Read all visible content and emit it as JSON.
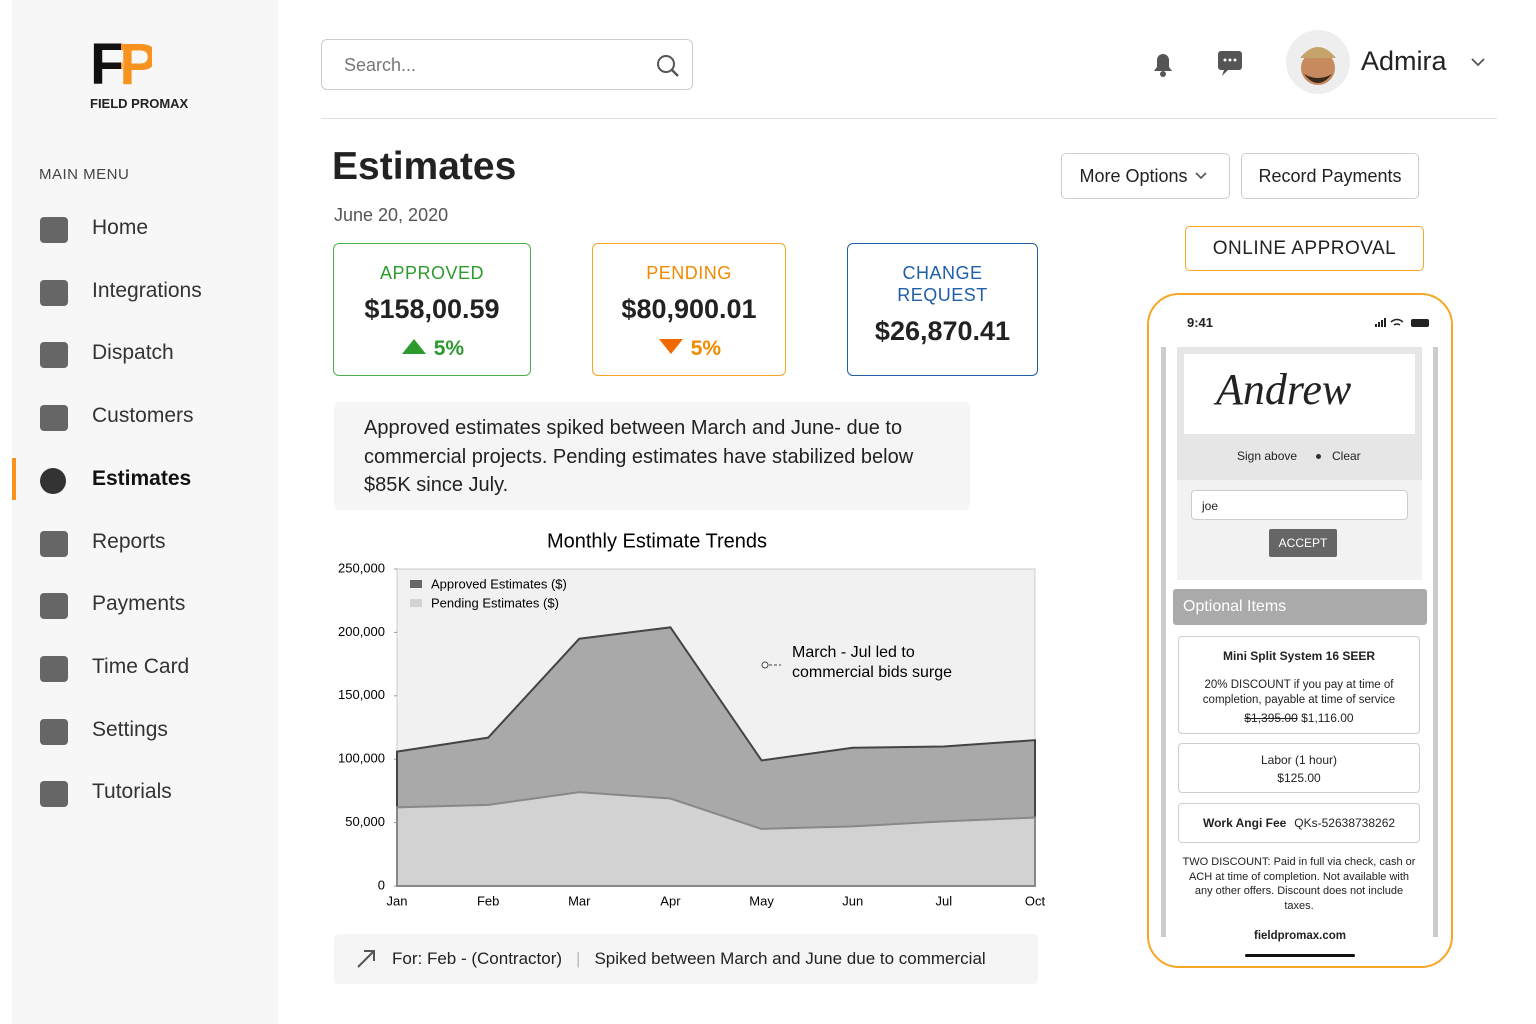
{
  "logo": {
    "mark": "FP",
    "name": "FIELD PROMAX"
  },
  "sidebar": {
    "heading": "MAIN MENU",
    "items": [
      "Home",
      "Integrations",
      "Dispatch",
      "Customers",
      "Estimates",
      "Reports",
      "Payments",
      "Time Card",
      "Settings",
      "Tutorials"
    ],
    "active": "Estimates"
  },
  "header": {
    "search_placeholder": "Search...",
    "user": "Admira"
  },
  "page": {
    "title": "Estimates",
    "date": "June 20, 2020",
    "buttons": [
      "More Options",
      "Record Payments"
    ]
  },
  "cards": [
    {
      "label": "APPROVED",
      "amount": "$158,00.59",
      "change": "5%",
      "direction": "up"
    },
    {
      "label": "PENDING",
      "amount": "$80,900.01",
      "change": "5%",
      "direction": "down"
    },
    {
      "label": "CHANGE\nREQUEST",
      "amount": "$26,870.41"
    }
  ],
  "insight": "Approved estimates spiked between March and June- due to commercial projects. Pending estimates have stabilized below $85K since July.",
  "chart_data": {
    "type": "area",
    "title": "Monthly Estimate Trends",
    "categories": [
      "Jan",
      "Feb",
      "Mar",
      "Apr",
      "May",
      "Jun",
      "Jul",
      "Oct"
    ],
    "series": [
      {
        "name": "Approved Estimates ($)",
        "color": "#a9a9a9",
        "values": [
          106000,
          117000,
          195000,
          204000,
          99000,
          109000,
          110000,
          115000
        ]
      },
      {
        "name": "Pending Estimates ($)",
        "color": "#d2d2d2",
        "values": [
          62000,
          64000,
          74000,
          69000,
          45000,
          47000,
          51000,
          54000
        ]
      }
    ],
    "ylim": [
      0,
      250000
    ],
    "yticks": [
      0,
      {
        "value": 50000,
        "label": "50,000"
      },
      {
        "value": 100000,
        "label": "100,000"
      },
      {
        "value": 150000,
        "label": "150,000"
      },
      {
        "value": 200000,
        "label": "200,000"
      },
      {
        "value": 250000,
        "label": "250,000"
      }
    ],
    "grid": false,
    "legend": "top-left",
    "annotation": "March - Jul led to\ncommercial bids surge"
  },
  "footer": {
    "for": "For: Feb - (Contractor)",
    "note": "Spiked between March and June due to commercial"
  },
  "approval": {
    "button": "ONLINE APPROVAL",
    "phone": {
      "time": "9:41",
      "signature": "Andrew",
      "sign_above": "Sign above",
      "clear": "Clear",
      "input": "joe",
      "accept": "ACCEPT",
      "optional_heading": "Optional Items",
      "item1": {
        "title": "Mini Split System 16 SEER",
        "desc": "20% DISCOUNT if you pay at time of completion, payable at time of service",
        "old_price": "$1,395.00",
        "price": "$1,116.00"
      },
      "item2": {
        "title": "Labor (1 hour)",
        "price": "$125.00"
      },
      "item3": {
        "title": "Work Angi Fee",
        "code": "QKs-52638738262"
      },
      "disclaimer": "TWO DISCOUNT: Paid in full via check, cash or ACH at time of completion. Not available with any other offers. Discount does not include taxes.",
      "site": "fieldpromax.com"
    }
  }
}
